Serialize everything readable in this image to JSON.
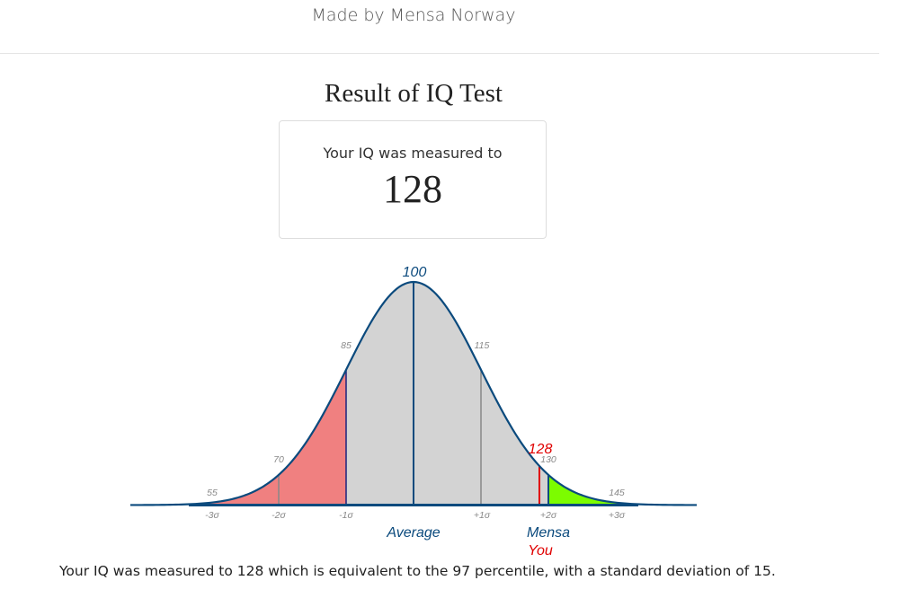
{
  "header": {
    "title": "Made by Mensa Norway"
  },
  "result": {
    "heading": "Result of IQ Test",
    "card_label": "Your IQ was measured to",
    "score": "128"
  },
  "chart_data": {
    "type": "area",
    "distribution": "normal",
    "mean": 100,
    "std_dev": 15,
    "x_range": [
      55,
      145
    ],
    "iq_labels": [
      "55",
      "70",
      "85",
      "100",
      "115",
      "130",
      "145"
    ],
    "sigma_labels": [
      "-3σ",
      "-2σ",
      "-1σ",
      "+1σ",
      "+2σ",
      "+3σ"
    ],
    "annotations": {
      "average": "Average",
      "mensa": "Mensa",
      "you": "You",
      "user_score": "128"
    },
    "user_value": 128,
    "mensa_threshold": 130,
    "colors": {
      "curve": "#0b4a7d",
      "fill": "#d3d3d3",
      "below_average_fill": "#f08080",
      "mensa_fill": "#7cfc00",
      "user_marker": "#e00000",
      "divider": "#1a237e",
      "grey_line": "#888888",
      "baseline": "#0b4a7d",
      "tick_text": "#888888"
    }
  },
  "summary": {
    "text": "Your IQ was measured to 128 which is equivalent to the 97 percentile, with a standard deviation of 15."
  }
}
